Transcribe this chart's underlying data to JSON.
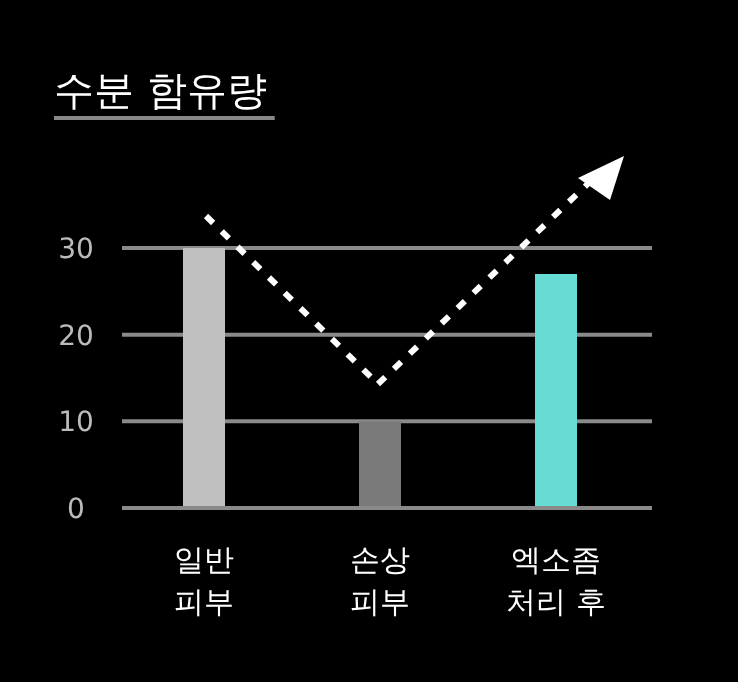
{
  "chart_data": {
    "type": "bar",
    "title": "수분 함유량",
    "categories": [
      "일반\n피부",
      "손상\n피부",
      "엑소좀\n처리 후"
    ],
    "values": [
      30,
      10,
      27
    ],
    "colors": [
      "#c0c0c0",
      "#7a7a7a",
      "#66dcd4"
    ],
    "ylim": [
      0,
      30
    ],
    "yticks": [
      0,
      10,
      20,
      30
    ],
    "grid": "y"
  }
}
